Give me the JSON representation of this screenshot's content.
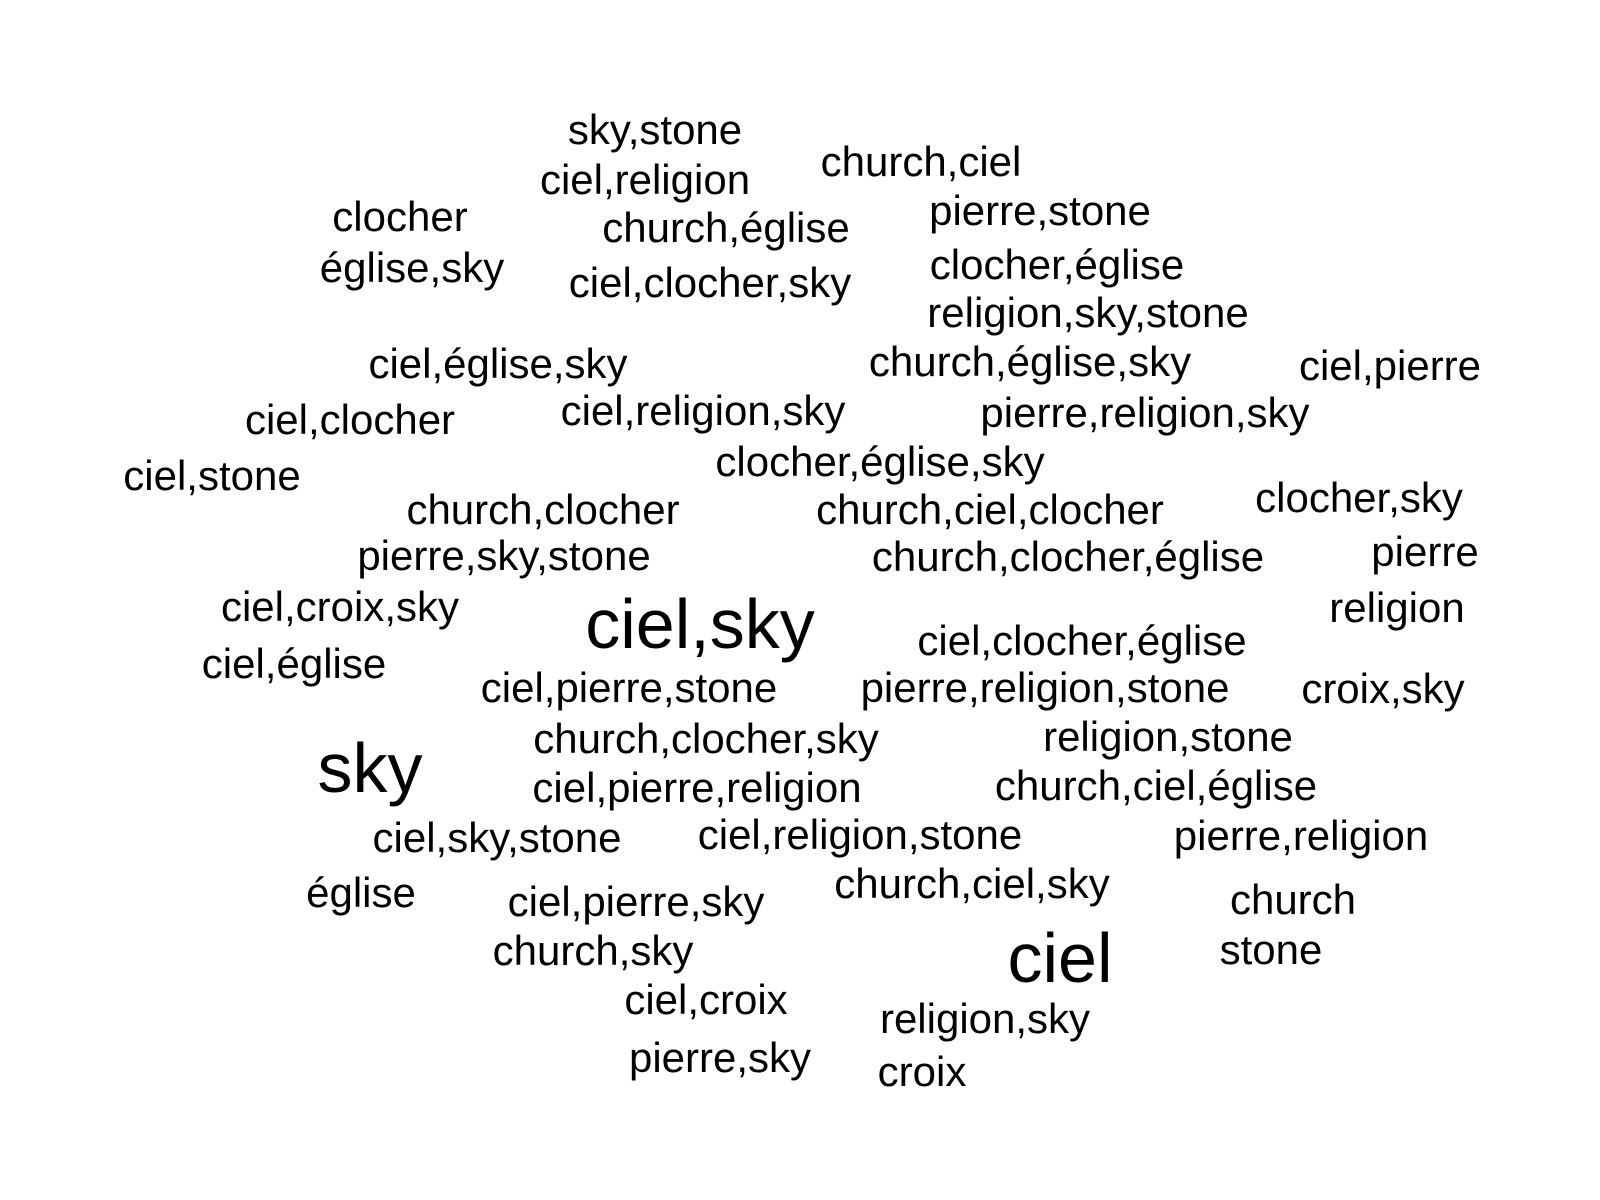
{
  "words": [
    {
      "text": "sky,stone"
    },
    {
      "text": "ciel,religion"
    },
    {
      "text": "church,ciel"
    },
    {
      "text": "clocher"
    },
    {
      "text": "church,église"
    },
    {
      "text": "pierre,stone"
    },
    {
      "text": "église,sky"
    },
    {
      "text": "ciel,clocher,sky"
    },
    {
      "text": "clocher,église"
    },
    {
      "text": "religion,sky,stone"
    },
    {
      "text": "ciel,église,sky"
    },
    {
      "text": "church,église,sky"
    },
    {
      "text": "ciel,pierre"
    },
    {
      "text": "ciel,clocher"
    },
    {
      "text": "ciel,religion,sky"
    },
    {
      "text": "pierre,religion,sky"
    },
    {
      "text": "clocher,église,sky"
    },
    {
      "text": "ciel,stone"
    },
    {
      "text": "church,clocher"
    },
    {
      "text": "church,ciel,clocher"
    },
    {
      "text": "clocher,sky"
    },
    {
      "text": "pierre,sky,stone"
    },
    {
      "text": "church,clocher,église"
    },
    {
      "text": "pierre"
    },
    {
      "text": "ciel,croix,sky"
    },
    {
      "text": "ciel,sky"
    },
    {
      "text": "religion"
    },
    {
      "text": "ciel,clocher,église"
    },
    {
      "text": "ciel,église"
    },
    {
      "text": "ciel,pierre,stone"
    },
    {
      "text": "pierre,religion,stone"
    },
    {
      "text": "croix,sky"
    },
    {
      "text": "church,clocher,sky"
    },
    {
      "text": "religion,stone"
    },
    {
      "text": "sky"
    },
    {
      "text": "ciel,pierre,religion"
    },
    {
      "text": "church,ciel,église"
    },
    {
      "text": "ciel,sky,stone"
    },
    {
      "text": "ciel,religion,stone"
    },
    {
      "text": "pierre,religion"
    },
    {
      "text": "church,ciel,sky"
    },
    {
      "text": "église"
    },
    {
      "text": "ciel,pierre,sky"
    },
    {
      "text": "church"
    },
    {
      "text": "church,sky"
    },
    {
      "text": "ciel"
    },
    {
      "text": "stone"
    },
    {
      "text": "ciel,croix"
    },
    {
      "text": "religion,sky"
    },
    {
      "text": "pierre,sky"
    },
    {
      "text": "croix"
    }
  ]
}
